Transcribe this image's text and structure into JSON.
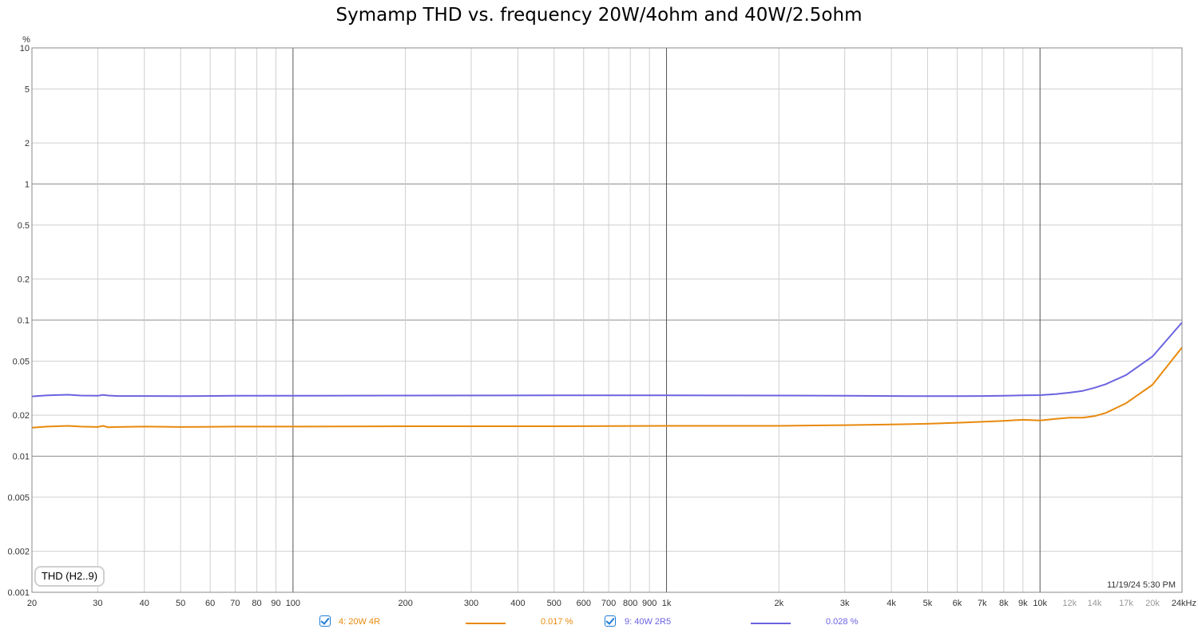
{
  "title": "Symamp THD vs. frequency 20W/4ohm and 40W/2.5ohm",
  "chart_data": {
    "type": "line",
    "title": "Symamp THD vs. frequency 20W/4ohm and 40W/2.5ohm",
    "xlabel": "",
    "ylabel": "%",
    "x_unit": "kHz",
    "xscale": "log",
    "yscale": "log",
    "xlim": [
      20,
      24000
    ],
    "ylim": [
      0.001,
      10
    ],
    "grid": true,
    "legend_position": "bottom",
    "y_ticks": [
      "10",
      "5",
      "2",
      "1",
      "0.5",
      "0.2",
      "0.1",
      "0.05",
      "0.02",
      "0.01",
      "0.005",
      "0.002",
      "0.001"
    ],
    "x_ticks": [
      "20",
      "30",
      "40",
      "50",
      "60",
      "70",
      "80",
      "90",
      "100",
      "200",
      "300",
      "400",
      "500",
      "600",
      "700",
      "800",
      "900",
      "1k",
      "2k",
      "3k",
      "4k",
      "5k",
      "6k",
      "7k",
      "8k",
      "9k",
      "10k",
      "12k",
      "14k",
      "17k",
      "20k",
      "24kHz"
    ],
    "series": [
      {
        "name": "4: 20W 4R",
        "color": "#e8890c",
        "reading": "0.017 %",
        "x": [
          20,
          22,
          25,
          27,
          30,
          31,
          32,
          34,
          40,
          50,
          70,
          100,
          200,
          500,
          1000,
          2000,
          3000,
          4000,
          5000,
          6000,
          7000,
          8000,
          9000,
          10000,
          11000,
          12000,
          13000,
          14000,
          15000,
          17000,
          20000,
          24000
        ],
        "y": [
          0.0162,
          0.0165,
          0.0167,
          0.0165,
          0.0164,
          0.0167,
          0.0163,
          0.0164,
          0.0165,
          0.0164,
          0.0165,
          0.0165,
          0.0166,
          0.0166,
          0.0167,
          0.0167,
          0.0169,
          0.0171,
          0.0173,
          0.0176,
          0.0179,
          0.0182,
          0.0185,
          0.0183,
          0.0188,
          0.0192,
          0.0192,
          0.0197,
          0.0208,
          0.0245,
          0.0335,
          0.063
        ]
      },
      {
        "name": "9: 40W 2R5",
        "color": "#6b63e0",
        "reading": "0.028 %",
        "x": [
          20,
          22,
          25,
          27,
          30,
          31,
          32,
          34,
          40,
          50,
          70,
          100,
          200,
          500,
          1000,
          2000,
          3000,
          4000,
          5000,
          6000,
          7000,
          8000,
          9000,
          10000,
          11000,
          12000,
          13000,
          14000,
          15000,
          17000,
          20000,
          24000
        ],
        "y": [
          0.0275,
          0.028,
          0.0283,
          0.0279,
          0.0278,
          0.0282,
          0.0279,
          0.0277,
          0.0277,
          0.0276,
          0.0278,
          0.0278,
          0.0279,
          0.028,
          0.028,
          0.0279,
          0.0278,
          0.0277,
          0.0276,
          0.0276,
          0.0277,
          0.0278,
          0.028,
          0.0281,
          0.0286,
          0.0293,
          0.0302,
          0.0318,
          0.0338,
          0.0395,
          0.054,
          0.096
        ]
      }
    ]
  },
  "legend": {
    "items": [
      {
        "label": "4: 20W 4R",
        "value": "0.017 %",
        "color": "#e8890c"
      },
      {
        "label": "9: 40W 2R5",
        "value": "0.028 %",
        "color": "#6b63e0"
      }
    ]
  },
  "metric_box": "THD (H2..9)",
  "timestamp": "11/19/24 5:30 PM",
  "y_unit": "%"
}
